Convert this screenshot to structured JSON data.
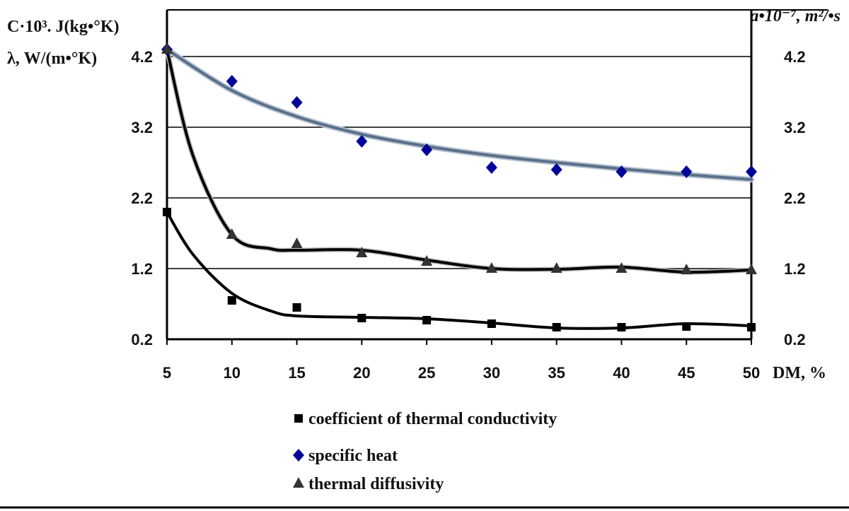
{
  "chart_data": {
    "type": "line",
    "x_axis": {
      "label": "DM, %",
      "ticks": [
        5,
        10,
        15,
        20,
        25,
        30,
        35,
        40,
        45,
        50
      ],
      "range": [
        5,
        50
      ]
    },
    "y_axis_left": {
      "label_line1": "C·10³.  J(kg•°K)",
      "label_line2": "λ, W/(m•°K)",
      "ticks": [
        0.2,
        1.2,
        2.2,
        3.2,
        4.2
      ],
      "range": [
        0.2,
        4.2
      ],
      "grid": true
    },
    "y_axis_right": {
      "label": "a•10⁻⁷, m²/•s",
      "ticks": [
        0.2,
        1.2,
        2.2,
        3.2,
        4.2
      ],
      "range": [
        0.2,
        4.2
      ]
    },
    "x": [
      5,
      10,
      15,
      20,
      25,
      30,
      35,
      40,
      45,
      50
    ],
    "series": [
      {
        "name": "coefficient of thermal conductivity",
        "marker": "square",
        "color": "#000000",
        "line_color": "#000000",
        "values": [
          2.0,
          0.75,
          0.65,
          0.5,
          0.47,
          0.42,
          0.37,
          0.37,
          0.38,
          0.37
        ],
        "trend": [
          [
            5,
            2.0
          ],
          [
            7,
            1.4
          ],
          [
            10,
            0.85
          ],
          [
            13,
            0.6
          ],
          [
            15,
            0.53
          ],
          [
            20,
            0.51
          ],
          [
            25,
            0.49
          ],
          [
            30,
            0.43
          ],
          [
            35,
            0.36
          ],
          [
            40,
            0.36
          ],
          [
            45,
            0.42
          ],
          [
            50,
            0.39
          ]
        ]
      },
      {
        "name": "specific heat",
        "marker": "diamond",
        "color": "#000099",
        "line_color": "#5a7089",
        "values": [
          4.3,
          3.85,
          3.55,
          3.0,
          2.88,
          2.63,
          2.6,
          2.57,
          2.57,
          2.57
        ],
        "trend": [
          [
            5,
            4.3
          ],
          [
            10,
            3.72
          ],
          [
            15,
            3.35
          ],
          [
            20,
            3.1
          ],
          [
            25,
            2.93
          ],
          [
            30,
            2.8
          ],
          [
            35,
            2.7
          ],
          [
            40,
            2.61
          ],
          [
            45,
            2.53
          ],
          [
            50,
            2.46
          ]
        ]
      },
      {
        "name": "thermal diffusivity",
        "marker": "triangle",
        "color": "#000000",
        "line_color": "#000000",
        "values": [
          4.3,
          1.68,
          1.55,
          1.42,
          1.3,
          1.2,
          1.2,
          1.2,
          1.18,
          1.18
        ],
        "trend": [
          [
            5,
            4.3
          ],
          [
            7,
            2.8
          ],
          [
            10,
            1.68
          ],
          [
            13,
            1.48
          ],
          [
            15,
            1.46
          ],
          [
            20,
            1.46
          ],
          [
            25,
            1.32
          ],
          [
            30,
            1.2
          ],
          [
            35,
            1.19
          ],
          [
            40,
            1.22
          ],
          [
            45,
            1.15
          ],
          [
            50,
            1.18
          ]
        ]
      }
    ],
    "legend_position": "bottom"
  }
}
